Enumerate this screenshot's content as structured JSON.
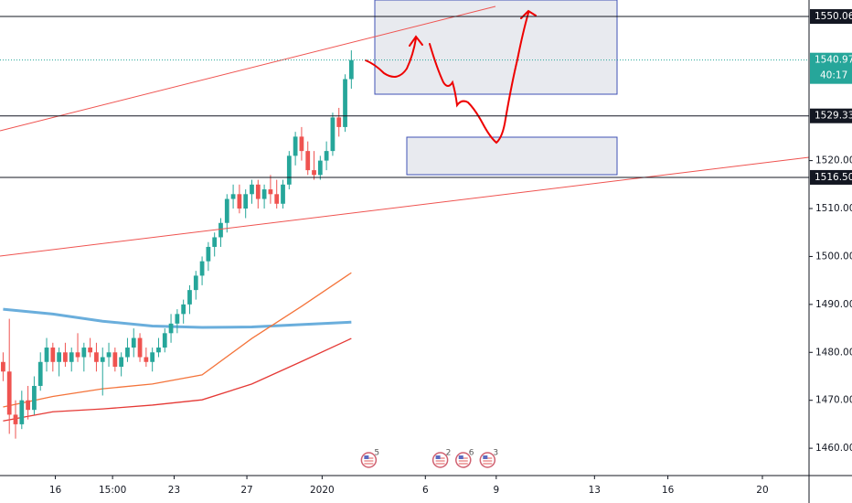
{
  "chart_data": {
    "type": "candlestick",
    "up_color": "#26a69a",
    "down_color": "#ef5350",
    "open": [
      1478,
      1476,
      1467,
      1465,
      1470,
      1468,
      1473,
      1478,
      1481,
      1478,
      1480,
      1478,
      1480,
      1479,
      1481,
      1480,
      1478,
      1479,
      1480,
      1477,
      1479,
      1481,
      1483,
      1479,
      1478,
      1480,
      1481,
      1484,
      1486,
      1488,
      1490,
      1493,
      1496,
      1499,
      1502,
      1504,
      1507,
      1512,
      1513,
      1510,
      1513,
      1515,
      1512,
      1514,
      1513,
      1511,
      1515,
      1521,
      1525,
      1522,
      1518,
      1517,
      1520,
      1522,
      1529,
      1527,
      1537
    ],
    "high": [
      1480,
      1487,
      1470,
      1472,
      1473,
      1475,
      1480,
      1483,
      1482,
      1481,
      1482,
      1481,
      1484,
      1482,
      1483,
      1482,
      1481,
      1482,
      1481,
      1480,
      1483,
      1485,
      1484,
      1481,
      1481,
      1483,
      1485,
      1488,
      1489,
      1491,
      1494,
      1497,
      1500,
      1503,
      1505,
      1508,
      1513,
      1515,
      1515,
      1514,
      1516,
      1516,
      1515,
      1517,
      1516,
      1516,
      1522,
      1526,
      1527,
      1524,
      1522,
      1521,
      1524,
      1530,
      1531,
      1538,
      1543
    ],
    "low": [
      1474,
      1463,
      1462,
      1464,
      1466,
      1467,
      1472,
      1476,
      1476,
      1475,
      1477,
      1476,
      1478,
      1476,
      1479,
      1476,
      1471,
      1477,
      1476,
      1475,
      1478,
      1479,
      1478,
      1477,
      1476,
      1479,
      1480,
      1482,
      1484,
      1486,
      1488,
      1491,
      1494,
      1497,
      1500,
      1502,
      1505,
      1510,
      1509,
      1508,
      1511,
      1510,
      1510,
      1511,
      1510,
      1510,
      1514,
      1519,
      1520,
      1517,
      1516,
      1516,
      1518,
      1521,
      1525,
      1526,
      1535
    ],
    "close": [
      1476,
      1467,
      1465,
      1470,
      1468,
      1473,
      1478,
      1481,
      1478,
      1480,
      1478,
      1480,
      1479,
      1481,
      1480,
      1478,
      1479,
      1480,
      1477,
      1479,
      1481,
      1483,
      1479,
      1478,
      1480,
      1481,
      1484,
      1486,
      1488,
      1490,
      1493,
      1496,
      1499,
      1502,
      1504,
      1507,
      1512,
      1513,
      1510,
      1513,
      1515,
      1512,
      1514,
      1513,
      1511,
      1515,
      1521,
      1525,
      1522,
      1518,
      1517,
      1520,
      1522,
      1529,
      1527,
      1537,
      1540.97
    ],
    "series": [
      {
        "color": "#6aaedc",
        "x": [
          0,
          8,
          16,
          24,
          32,
          40,
          48,
          56
        ],
        "values": [
          1489,
          1488,
          1486.5,
          1485.5,
          1485.2,
          1485.3,
          1485.8,
          1486.3
        ]
      },
      {
        "color": "#f4743b",
        "x": [
          0,
          8,
          16,
          24,
          32,
          40,
          48,
          56
        ],
        "values": [
          1468.6,
          1470.8,
          1472.4,
          1473.4,
          1475.3,
          1482.9,
          1489.6,
          1496.6
        ]
      },
      {
        "color": "#e53935",
        "x": [
          0,
          8,
          16,
          24,
          32,
          40,
          48,
          56
        ],
        "values": [
          1465.7,
          1467.6,
          1468.2,
          1469,
          1470.1,
          1473.4,
          1478.1,
          1482.9
        ]
      }
    ],
    "levels": [
      1550.06,
      1529.33,
      {
        "value": 1516.5,
        "label": "1516.50"
      }
    ],
    "countdown": "40:17",
    "events": [
      {
        "x": 58.8,
        "label": "5"
      },
      {
        "x": 70.3,
        "label": "2"
      },
      {
        "x": 74,
        "label": "6"
      },
      {
        "x": 77.9,
        "label": "3"
      }
    ],
    "xlim": [
      -0.5,
      129.6
    ],
    "ylim": [
      1454.3,
      1553.5
    ],
    "xticks": [
      {
        "value": 8.4,
        "label": "16"
      },
      {
        "value": 17.6,
        "label": "15:00"
      },
      {
        "value": 27.5,
        "label": "23"
      },
      {
        "value": 39.2,
        "label": "27"
      },
      {
        "value": 51.3,
        "label": "2020"
      },
      {
        "value": 67.9,
        "label": "6"
      },
      {
        "value": 79.3,
        "label": "9"
      },
      {
        "value": 95.1,
        "label": "13"
      },
      {
        "value": 106.9,
        "label": "16"
      },
      {
        "value": 122.1,
        "label": "20"
      }
    ],
    "yticks": [
      {
        "value": 1460,
        "label": "1460.00"
      },
      {
        "value": 1470,
        "label": "1470.00"
      },
      {
        "value": 1480,
        "label": "1480.00"
      },
      {
        "value": 1490,
        "label": "1490.00"
      },
      {
        "value": 1500,
        "label": "1500.00"
      },
      {
        "value": 1510,
        "label": "1510.00"
      },
      {
        "value": 1520,
        "label": "1520.00"
      }
    ]
  }
}
